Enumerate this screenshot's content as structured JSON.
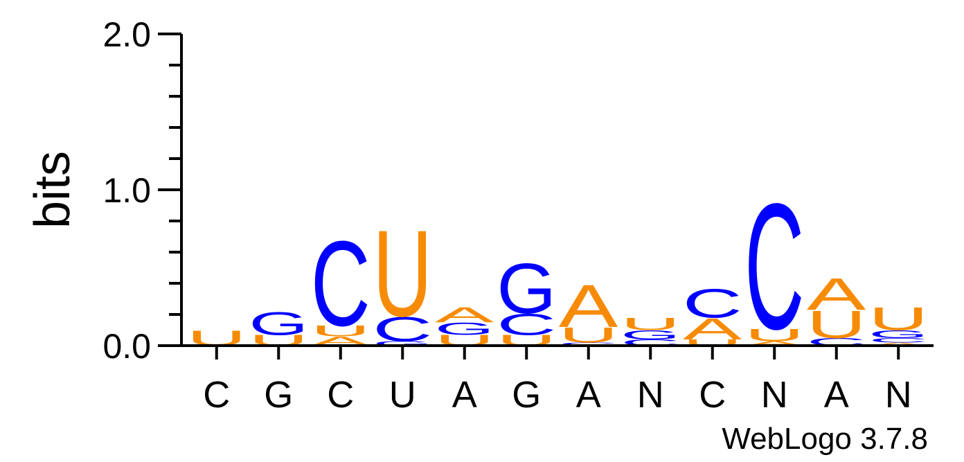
{
  "chart_data": {
    "type": "sequence-logo",
    "ylabel": "bits",
    "ylim": [
      0,
      2.0
    ],
    "yticks": [
      "0.0",
      "1.0",
      "2.0"
    ],
    "credit": "WebLogo 3.7.8",
    "colors": {
      "A": "#f78b06",
      "U": "#f78b06",
      "C": "#0000ff",
      "G": "#0000ff"
    },
    "positions": [
      {
        "label": "C",
        "stack": [
          {
            "letter": "U",
            "bits": 0.1
          }
        ]
      },
      {
        "label": "G",
        "stack": [
          {
            "letter": "U",
            "bits": 0.07
          },
          {
            "letter": "G",
            "bits": 0.15
          }
        ]
      },
      {
        "label": "C",
        "stack": [
          {
            "letter": "A",
            "bits": 0.06
          },
          {
            "letter": "U",
            "bits": 0.07
          },
          {
            "letter": "C",
            "bits": 0.56
          }
        ]
      },
      {
        "label": "U",
        "stack": [
          {
            "letter": "G",
            "bits": 0.03
          },
          {
            "letter": "C",
            "bits": 0.16
          },
          {
            "letter": "U",
            "bits": 0.57
          }
        ]
      },
      {
        "label": "A",
        "stack": [
          {
            "letter": "U",
            "bits": 0.07
          },
          {
            "letter": "G",
            "bits": 0.08
          },
          {
            "letter": "A",
            "bits": 0.1
          }
        ]
      },
      {
        "label": "G",
        "stack": [
          {
            "letter": "U",
            "bits": 0.07
          },
          {
            "letter": "C",
            "bits": 0.14
          },
          {
            "letter": "G",
            "bits": 0.33
          }
        ]
      },
      {
        "label": "A",
        "stack": [
          {
            "letter": "C",
            "bits": 0.02
          },
          {
            "letter": "U",
            "bits": 0.1
          },
          {
            "letter": "A",
            "bits": 0.28
          }
        ]
      },
      {
        "label": "N",
        "stack": [
          {
            "letter": "C",
            "bits": 0.04
          },
          {
            "letter": "G",
            "bits": 0.06
          },
          {
            "letter": "U",
            "bits": 0.08
          }
        ]
      },
      {
        "label": "C",
        "stack": [
          {
            "letter": "U",
            "bits": 0.04
          },
          {
            "letter": "A",
            "bits": 0.14
          },
          {
            "letter": "C",
            "bits": 0.19
          }
        ]
      },
      {
        "label": "N",
        "stack": [
          {
            "letter": "A",
            "bits": 0.03
          },
          {
            "letter": "U",
            "bits": 0.08
          },
          {
            "letter": "C",
            "bits": 0.83
          }
        ]
      },
      {
        "label": "A",
        "stack": [
          {
            "letter": "C",
            "bits": 0.05
          },
          {
            "letter": "U",
            "bits": 0.18
          },
          {
            "letter": "A",
            "bits": 0.21
          }
        ]
      },
      {
        "label": "N",
        "stack": [
          {
            "letter": "A",
            "bits": 0.02
          },
          {
            "letter": "C",
            "bits": 0.03
          },
          {
            "letter": "G",
            "bits": 0.05
          },
          {
            "letter": "U",
            "bits": 0.15
          }
        ]
      }
    ]
  }
}
